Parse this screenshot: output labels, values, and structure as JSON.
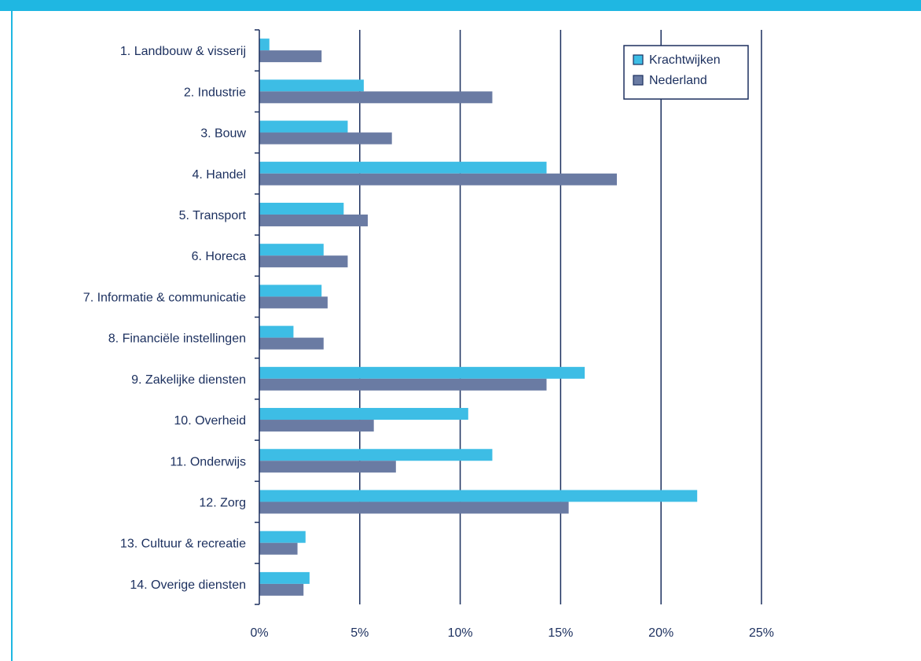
{
  "chart_data": {
    "type": "bar",
    "orientation": "horizontal",
    "categories": [
      "1. Landbouw & visserij",
      "2. Industrie",
      "3. Bouw",
      "4. Handel",
      "5. Transport",
      "6. Horeca",
      "7. Informatie & communicatie",
      "8. Financiële instellingen",
      "9. Zakelijke diensten",
      "10. Overheid",
      "11. Onderwijs",
      "12. Zorg",
      "13. Cultuur & recreatie",
      "14. Overige diensten"
    ],
    "series": [
      {
        "name": "Krachtwijken",
        "color": "#3dbde5",
        "values": [
          0.5,
          5.2,
          4.4,
          14.3,
          4.2,
          3.2,
          3.1,
          1.7,
          16.2,
          10.4,
          11.6,
          21.8,
          2.3,
          2.5
        ]
      },
      {
        "name": "Nederland",
        "color": "#6a7ba3",
        "values": [
          3.1,
          11.6,
          6.6,
          17.8,
          5.4,
          4.4,
          3.4,
          3.2,
          14.3,
          5.7,
          6.8,
          15.4,
          1.9,
          2.2
        ]
      }
    ],
    "xlim": [
      0,
      25
    ],
    "x_ticks": [
      "0%",
      "5%",
      "10%",
      "15%",
      "20%",
      "25%"
    ],
    "grid": "vertical",
    "legend_position": "top-right",
    "title": "",
    "xlabel": "",
    "ylabel": ""
  }
}
